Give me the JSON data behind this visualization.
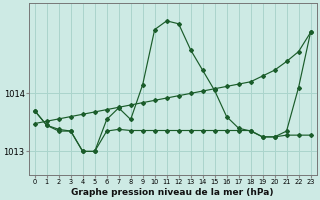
{
  "title": "Graphe pression niveau de la mer (hPa)",
  "background_color": "#cdeae4",
  "grid_color": "#aad4cc",
  "line_color": "#1a5c2a",
  "x_values": [
    0,
    1,
    2,
    3,
    4,
    5,
    6,
    7,
    8,
    9,
    10,
    11,
    12,
    13,
    14,
    15,
    16,
    17,
    18,
    19,
    20,
    21,
    22,
    23
  ],
  "series_wavy": [
    1013.7,
    1013.45,
    1013.35,
    1013.35,
    1013.0,
    1013.0,
    1013.55,
    1013.75,
    1013.55,
    1014.15,
    1015.1,
    1015.25,
    1015.2,
    1014.75,
    1014.4,
    1014.05,
    1013.6,
    1013.4,
    1013.35,
    1013.25,
    1013.25,
    1013.35,
    1014.1,
    1015.05
  ],
  "series_flat": [
    1013.7,
    1013.45,
    1013.38,
    1013.35,
    1013.0,
    1013.0,
    1013.35,
    1013.38,
    1013.36,
    1013.36,
    1013.36,
    1013.36,
    1013.36,
    1013.36,
    1013.36,
    1013.36,
    1013.36,
    1013.36,
    1013.36,
    1013.25,
    1013.25,
    1013.28,
    1013.28,
    1013.28
  ],
  "series_diag": [
    1013.48,
    1013.52,
    1013.56,
    1013.6,
    1013.64,
    1013.68,
    1013.72,
    1013.76,
    1013.8,
    1013.84,
    1013.88,
    1013.92,
    1013.96,
    1014.0,
    1014.04,
    1014.08,
    1014.12,
    1014.16,
    1014.2,
    1014.3,
    1014.4,
    1014.55,
    1014.72,
    1015.05
  ],
  "ylim": [
    1012.6,
    1015.55
  ],
  "yticks": [
    1013,
    1014
  ],
  "figsize": [
    3.2,
    2.0
  ],
  "dpi": 100
}
